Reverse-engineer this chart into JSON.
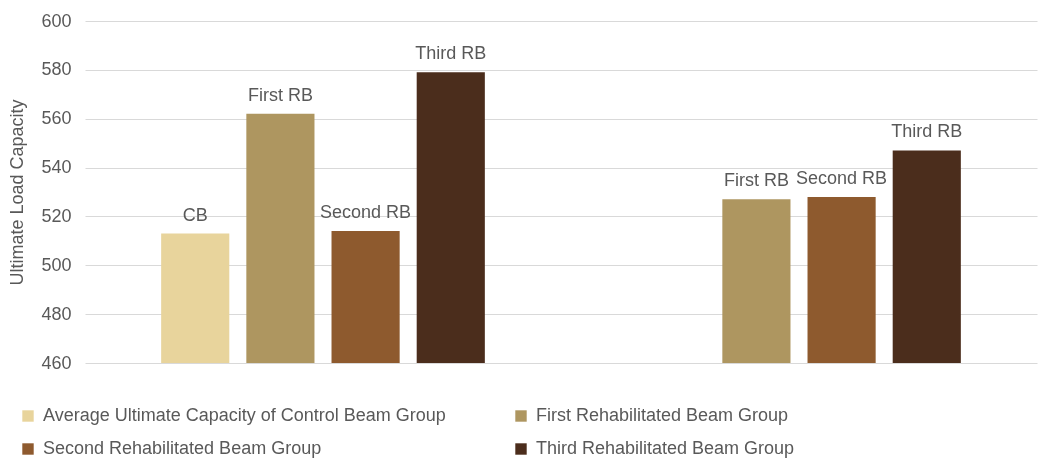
{
  "chart_data": {
    "type": "bar",
    "ylabel": "Ultimate Load Capacity",
    "categories": [
      null,
      null
    ],
    "series": [
      {
        "name": "Average Ultimate Capacity of Control Beam Group",
        "color": "#e8d49c",
        "values": [
          513,
          null
        ],
        "value_labels": [
          "CB",
          null
        ]
      },
      {
        "name": "First Rehabilitated Beam Group",
        "color": "#ae9660",
        "values": [
          562,
          527
        ],
        "value_labels": [
          "First RB",
          "First RB"
        ]
      },
      {
        "name": "Second Rehabilitated Beam Group",
        "color": "#8e5a2e",
        "values": [
          514,
          528
        ],
        "value_labels": [
          "Second RB",
          "Second RB"
        ]
      },
      {
        "name": "Third Rehabilitated Beam Group",
        "color": "#4b2d1c",
        "values": [
          579,
          547
        ],
        "value_labels": [
          "Third RB",
          "Third RB"
        ]
      }
    ],
    "ylim": [
      460,
      600
    ],
    "yticks": [
      460,
      480,
      500,
      520,
      540,
      560,
      580,
      600
    ],
    "grid": "y",
    "legend": "bottom"
  }
}
